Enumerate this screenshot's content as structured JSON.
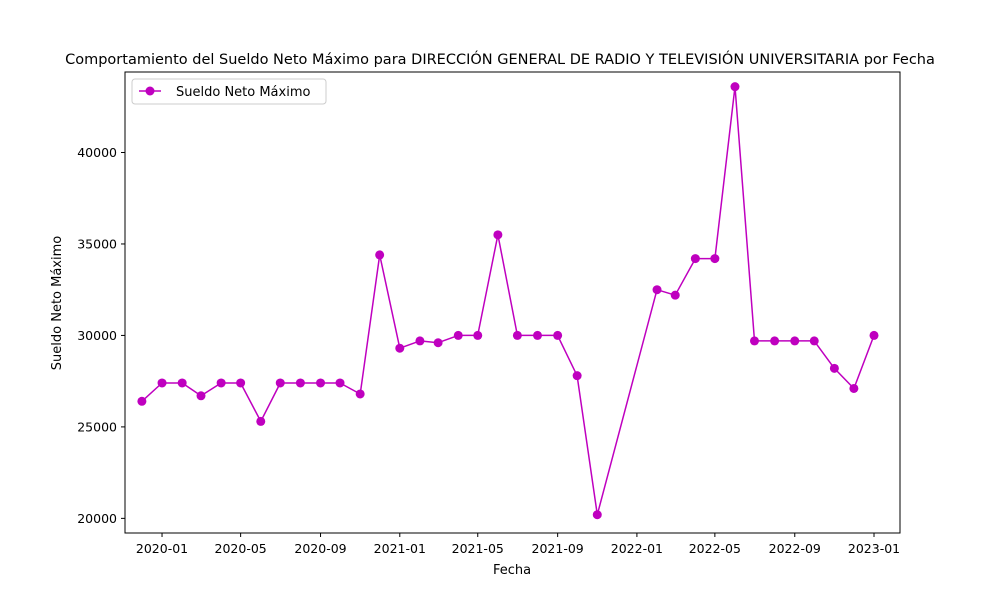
{
  "chart_data": {
    "type": "line",
    "title": "Comportamiento del Sueldo Neto Máximo para DIRECCIÓN GENERAL DE RADIO Y TELEVISIÓN UNIVERSITARIA por Fecha",
    "xlabel": "Fecha",
    "ylabel": "Sueldo Neto Máximo",
    "x_ticks": [
      "2020-01",
      "2020-05",
      "2020-09",
      "2021-01",
      "2021-05",
      "2021-09",
      "2022-01",
      "2022-05",
      "2022-09",
      "2023-01"
    ],
    "y_ticks": [
      20000,
      25000,
      30000,
      35000,
      40000
    ],
    "ylim": [
      19200,
      44400
    ],
    "xlim": [
      "2019-11-05",
      "2023-02-10"
    ],
    "legend": "upper-left",
    "grid": false,
    "series": [
      {
        "name": "Sueldo Neto Máximo",
        "color": "#bf00bf",
        "points": [
          [
            "2019-12-01",
            26400
          ],
          [
            "2020-01-01",
            27400
          ],
          [
            "2020-02-01",
            27400
          ],
          [
            "2020-03-01",
            26700
          ],
          [
            "2020-04-01",
            27400
          ],
          [
            "2020-05-01",
            27400
          ],
          [
            "2020-06-01",
            25300
          ],
          [
            "2020-07-01",
            27400
          ],
          [
            "2020-08-01",
            27400
          ],
          [
            "2020-09-01",
            27400
          ],
          [
            "2020-10-01",
            27400
          ],
          [
            "2020-11-01",
            26800
          ],
          [
            "2020-12-01",
            34400
          ],
          [
            "2021-01-01",
            29300
          ],
          [
            "2021-02-01",
            29700
          ],
          [
            "2021-03-01",
            29600
          ],
          [
            "2021-04-01",
            30000
          ],
          [
            "2021-05-01",
            30000
          ],
          [
            "2021-06-01",
            35500
          ],
          [
            "2021-07-01",
            30000
          ],
          [
            "2021-08-01",
            30000
          ],
          [
            "2021-09-01",
            30000
          ],
          [
            "2021-10-01",
            27800
          ],
          [
            "2021-11-01",
            20200
          ],
          [
            "2022-02-01",
            32500
          ],
          [
            "2022-03-01",
            32200
          ],
          [
            "2022-04-01",
            34200
          ],
          [
            "2022-05-01",
            34200
          ],
          [
            "2022-06-01",
            43600
          ],
          [
            "2022-07-01",
            29700
          ],
          [
            "2022-08-01",
            29700
          ],
          [
            "2022-09-01",
            29700
          ],
          [
            "2022-10-01",
            29700
          ],
          [
            "2022-11-01",
            28200
          ],
          [
            "2022-12-01",
            27100
          ],
          [
            "2023-01-01",
            30000
          ]
        ]
      }
    ]
  }
}
